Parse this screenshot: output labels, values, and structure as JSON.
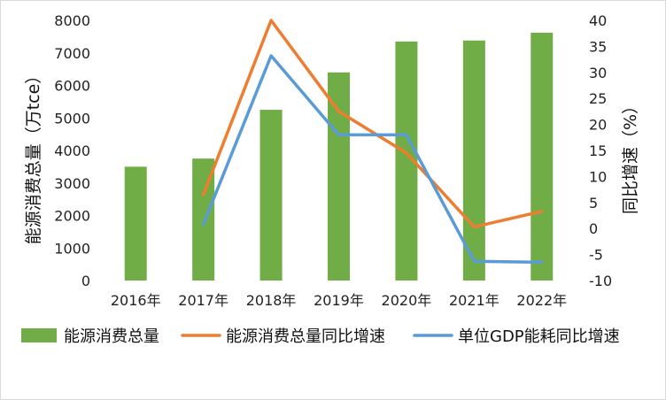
{
  "chart_data": {
    "type": "bar",
    "categories": [
      "2016年",
      "2017年",
      "2018年",
      "2019年",
      "2020年",
      "2021年",
      "2022年"
    ],
    "ylabel_left": "能源消费总量（万tce）",
    "ylabel_right": "同比增速（%）",
    "ylim_left": [
      0,
      8000
    ],
    "yticks_left": [
      0,
      1000,
      2000,
      3000,
      4000,
      5000,
      6000,
      7000,
      8000
    ],
    "ylim_right": [
      -10,
      40
    ],
    "yticks_right": [
      -10,
      -5,
      0,
      5,
      10,
      15,
      20,
      25,
      30,
      35,
      40
    ],
    "grid": false,
    "legend_position": "bottom",
    "series": [
      {
        "name": "能源消费总量",
        "type": "bar",
        "axis": "left",
        "color": "#70ad47",
        "values": [
          3500,
          3750,
          5250,
          6400,
          7350,
          7380,
          7620
        ]
      },
      {
        "name": "能源消费总量同比增速",
        "type": "line",
        "axis": "right",
        "color": "#ed7d31",
        "values": [
          null,
          6.5,
          40.0,
          22.5,
          14.5,
          0.3,
          3.3
        ]
      },
      {
        "name": "单位GDP能耗同比增速",
        "type": "line",
        "axis": "right",
        "color": "#5b9bd5",
        "values": [
          null,
          0.8,
          33.2,
          18.0,
          18.0,
          -6.3,
          -6.5
        ]
      }
    ]
  }
}
